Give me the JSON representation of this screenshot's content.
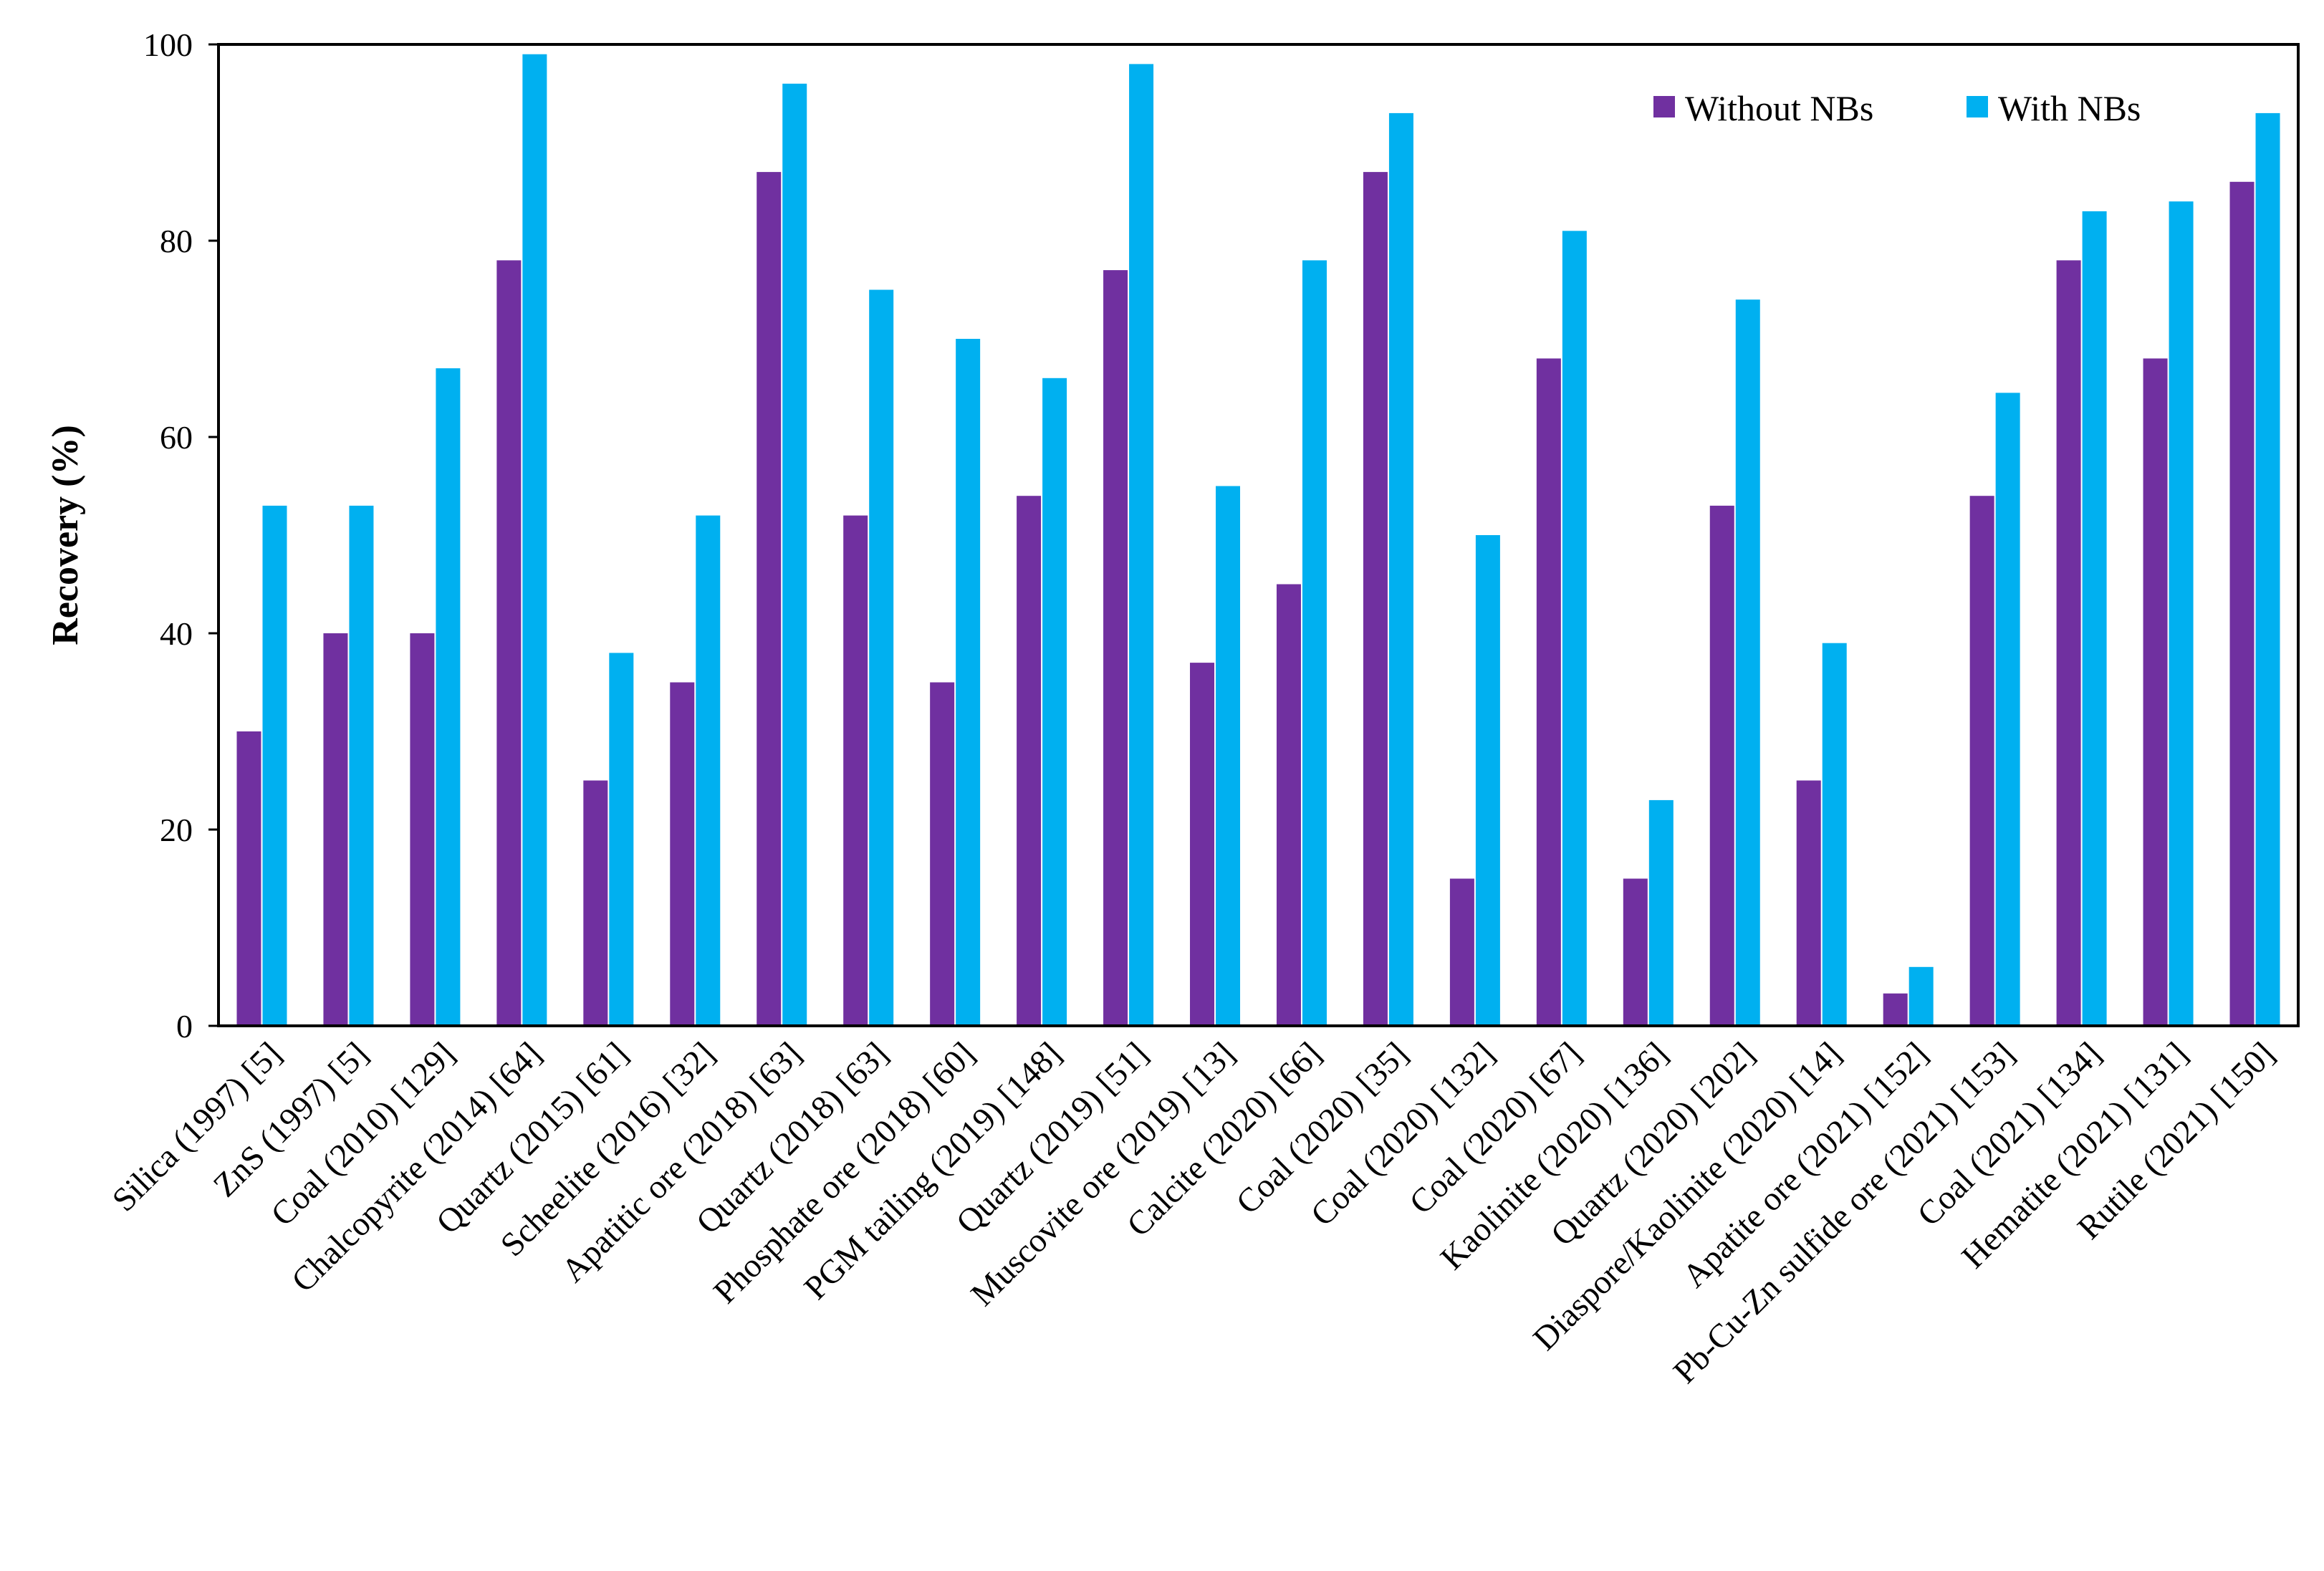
{
  "chart_data": {
    "type": "bar",
    "title": "",
    "xlabel": "",
    "ylabel": "Recovery (%)",
    "ylim": [
      0,
      100
    ],
    "yticks": [
      "0",
      "20",
      "40",
      "60",
      "80",
      "100"
    ],
    "grid": false,
    "legend_position": "top-right",
    "categories": [
      "Silica (1997) [5]",
      "ZnS (1997) [5]",
      "Coal (2010) [129]",
      "Chalcopyrite (2014) [64]",
      "Quartz (2015) [61]",
      "Scheelite (2016) [32]",
      "Apatitic ore (2018) [63]",
      "Quartz (2018) [63]",
      "Phosphate ore (2018) [60]",
      "PGM tailing (2019) [148]",
      "Quartz (2019) [51]",
      "Muscovite ore (2019) [13]",
      "Calcite (2020) [66]",
      "Coal (2020) [35]",
      "Coal (2020) [132]",
      "Coal (2020) [67]",
      "Kaolinite (2020) [136]",
      "Quartz (2020) [202]",
      "Diaspore/Kaolinite (2020) [14]",
      "Apatite ore (2021) [152]",
      "Pb-Cu-Zn sulfide ore (2021) [153]",
      "Coal (2021) [134]",
      "Hematite (2021) [131]",
      "Rutile (2021) [150]"
    ],
    "series": [
      {
        "name": "Without NBs",
        "color": "#7030a0",
        "values": [
          30,
          40,
          40,
          78,
          25,
          35,
          87,
          52,
          35,
          54,
          77,
          37,
          45,
          87,
          15,
          68,
          15,
          53,
          25,
          3.3,
          54,
          78,
          68,
          86
        ]
      },
      {
        "name": "With NBs",
        "color": "#00b0f0",
        "values": [
          53,
          53,
          67,
          99,
          38,
          52,
          96,
          75,
          70,
          66,
          98,
          55,
          78,
          93,
          50,
          81,
          23,
          74,
          39,
          6,
          64.5,
          83,
          84,
          93
        ]
      }
    ]
  }
}
